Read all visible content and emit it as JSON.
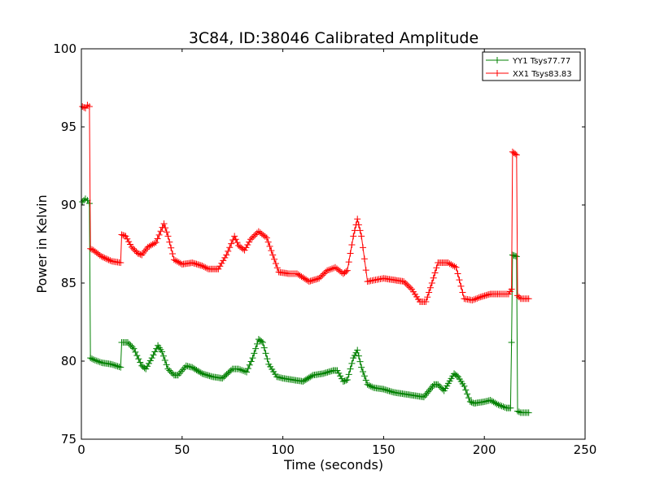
{
  "chart_data": {
    "type": "line",
    "title": "3C84, ID:38046 Calibrated Amplitude",
    "xlabel": "Time (seconds)",
    "ylabel": "Power in Kelvin",
    "xlim": [
      0,
      250
    ],
    "ylim": [
      75,
      100
    ],
    "xticks": [
      0,
      50,
      100,
      150,
      200,
      250
    ],
    "yticks": [
      75,
      80,
      85,
      90,
      95,
      100
    ],
    "grid": false,
    "legend_position": "top-right",
    "marker": "+",
    "series": [
      {
        "name": "YY1 Tsys77.77",
        "color": "#008000",
        "points": [
          [
            0.5,
            90.2
          ],
          [
            2,
            90.4
          ],
          [
            3,
            90.3
          ],
          [
            4,
            90.1
          ],
          [
            4.5,
            80.2
          ],
          [
            6,
            80.1
          ],
          [
            10,
            79.9
          ],
          [
            15,
            79.8
          ],
          [
            19.5,
            79.6
          ],
          [
            20,
            81.2
          ],
          [
            23,
            81.2
          ],
          [
            26,
            80.8
          ],
          [
            30,
            79.7
          ],
          [
            32,
            79.5
          ],
          [
            35,
            80.2
          ],
          [
            38,
            81.0
          ],
          [
            40,
            80.6
          ],
          [
            43,
            79.5
          ],
          [
            46,
            79.1
          ],
          [
            48,
            79.1
          ],
          [
            52,
            79.7
          ],
          [
            55,
            79.6
          ],
          [
            60,
            79.2
          ],
          [
            65,
            79.0
          ],
          [
            70,
            78.9
          ],
          [
            75,
            79.5
          ],
          [
            78,
            79.5
          ],
          [
            82,
            79.3
          ],
          [
            85,
            80.2
          ],
          [
            88,
            81.4
          ],
          [
            90,
            81.2
          ],
          [
            93,
            79.8
          ],
          [
            97,
            79.0
          ],
          [
            100,
            78.9
          ],
          [
            105,
            78.8
          ],
          [
            110,
            78.7
          ],
          [
            115,
            79.1
          ],
          [
            120,
            79.2
          ],
          [
            125,
            79.4
          ],
          [
            127,
            79.4
          ],
          [
            130,
            78.7
          ],
          [
            132,
            78.8
          ],
          [
            135,
            80.2
          ],
          [
            137,
            80.7
          ],
          [
            139,
            79.6
          ],
          [
            142,
            78.5
          ],
          [
            145,
            78.3
          ],
          [
            150,
            78.2
          ],
          [
            155,
            78.0
          ],
          [
            160,
            77.9
          ],
          [
            165,
            77.8
          ],
          [
            170,
            77.7
          ],
          [
            175,
            78.5
          ],
          [
            177,
            78.5
          ],
          [
            180,
            78.1
          ],
          [
            185,
            79.2
          ],
          [
            187,
            79.0
          ],
          [
            190,
            78.4
          ],
          [
            193,
            77.4
          ],
          [
            195,
            77.3
          ],
          [
            200,
            77.4
          ],
          [
            203,
            77.5
          ],
          [
            207,
            77.2
          ],
          [
            211,
            77.0
          ],
          [
            213,
            77.0
          ],
          [
            213.5,
            81.2
          ],
          [
            214,
            86.8
          ],
          [
            216,
            86.7
          ],
          [
            216.5,
            76.8
          ],
          [
            218,
            76.7
          ],
          [
            222,
            76.7
          ]
        ]
      },
      {
        "name": "XX1 Tsys83.83",
        "color": "#ff0000",
        "points": [
          [
            0.5,
            96.3
          ],
          [
            2,
            96.2
          ],
          [
            3,
            96.4
          ],
          [
            4,
            96.3
          ],
          [
            4.5,
            87.2
          ],
          [
            6,
            87.1
          ],
          [
            10,
            86.7
          ],
          [
            15,
            86.4
          ],
          [
            19.5,
            86.3
          ],
          [
            20,
            88.1
          ],
          [
            22,
            88.0
          ],
          [
            25,
            87.3
          ],
          [
            28,
            86.9
          ],
          [
            30,
            86.8
          ],
          [
            33,
            87.3
          ],
          [
            37,
            87.6
          ],
          [
            41,
            88.8
          ],
          [
            43,
            88.0
          ],
          [
            46,
            86.5
          ],
          [
            50,
            86.2
          ],
          [
            55,
            86.3
          ],
          [
            60,
            86.1
          ],
          [
            63,
            85.9
          ],
          [
            68,
            85.9
          ],
          [
            72,
            86.8
          ],
          [
            76,
            88.0
          ],
          [
            78,
            87.4
          ],
          [
            81,
            87.1
          ],
          [
            84,
            87.8
          ],
          [
            88,
            88.3
          ],
          [
            92,
            87.9
          ],
          [
            95,
            86.8
          ],
          [
            98,
            85.7
          ],
          [
            103,
            85.6
          ],
          [
            107,
            85.6
          ],
          [
            113,
            85.1
          ],
          [
            118,
            85.3
          ],
          [
            122,
            85.8
          ],
          [
            126,
            86.0
          ],
          [
            130,
            85.6
          ],
          [
            132,
            85.8
          ],
          [
            135,
            88.0
          ],
          [
            137,
            89.1
          ],
          [
            139,
            88.0
          ],
          [
            142,
            85.1
          ],
          [
            146,
            85.2
          ],
          [
            150,
            85.3
          ],
          [
            155,
            85.2
          ],
          [
            160,
            85.1
          ],
          [
            164,
            84.6
          ],
          [
            168,
            83.8
          ],
          [
            171,
            83.8
          ],
          [
            174,
            85.0
          ],
          [
            177,
            86.3
          ],
          [
            182,
            86.3
          ],
          [
            186,
            86.0
          ],
          [
            190,
            84.0
          ],
          [
            194,
            83.9
          ],
          [
            198,
            84.1
          ],
          [
            203,
            84.3
          ],
          [
            208,
            84.3
          ],
          [
            212,
            84.3
          ],
          [
            213.5,
            84.6
          ],
          [
            214,
            93.4
          ],
          [
            216,
            93.2
          ],
          [
            216.5,
            84.2
          ],
          [
            218,
            84.0
          ],
          [
            222,
            84.0
          ]
        ]
      }
    ]
  }
}
